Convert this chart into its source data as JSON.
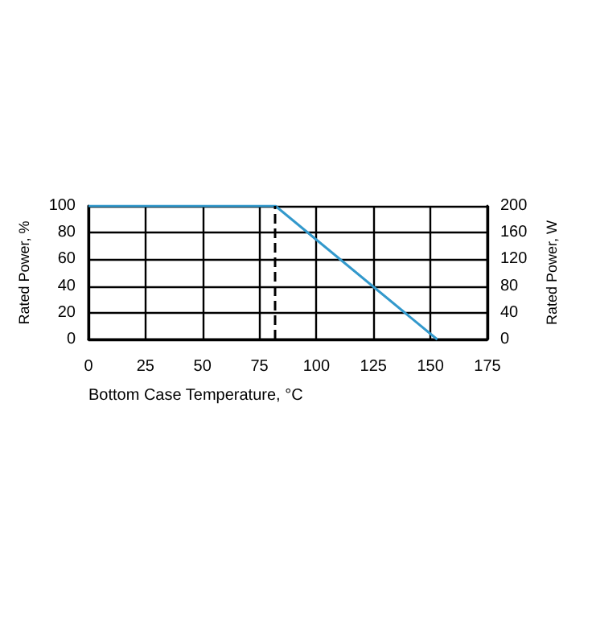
{
  "chart_data": {
    "type": "line",
    "xlabel": "Bottom Case Temperature, °C",
    "ylabel": "Rated Power, %",
    "y2label": "Rated Power, W",
    "x": [
      0,
      82,
      153
    ],
    "series": [
      {
        "color": "#3399cc",
        "values": [
          100,
          100,
          0
        ]
      }
    ],
    "xlim": [
      0,
      175
    ],
    "xticks": [
      0,
      25,
      50,
      75,
      100,
      125,
      150,
      175
    ],
    "ylim": [
      0,
      100
    ],
    "yticks": [
      0,
      20,
      40,
      60,
      80,
      100
    ],
    "y2lim": [
      0,
      200
    ],
    "y2ticks": [
      0,
      40,
      80,
      120,
      160,
      200
    ],
    "ref_lines": [
      {
        "axis": "x",
        "value": 82,
        "color": "#000000",
        "line_style": "dashed"
      }
    ],
    "grid": true,
    "marker": "none",
    "line_style": "solid"
  }
}
